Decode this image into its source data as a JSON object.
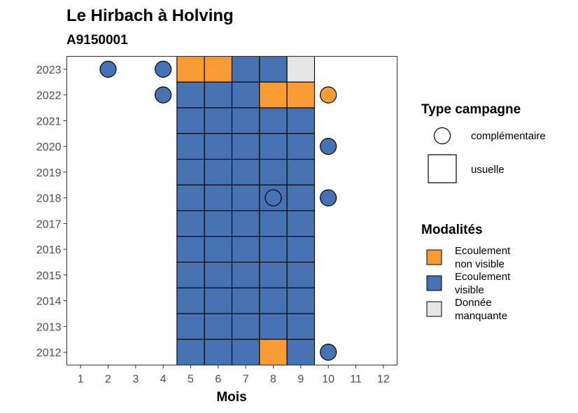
{
  "chart_data": {
    "type": "heatmap",
    "title": "Le Hirbach à Holving",
    "subtitle": "A9150001",
    "xlabel": "Mois",
    "ylabel": "",
    "x_ticks": [
      1,
      2,
      3,
      4,
      5,
      6,
      7,
      8,
      9,
      10,
      11,
      12
    ],
    "y_ticks": [
      2012,
      2013,
      2014,
      2015,
      2016,
      2017,
      2018,
      2019,
      2020,
      2021,
      2022,
      2023
    ],
    "xlim": [
      0.5,
      12.5
    ],
    "ylim": [
      2011.5,
      2023.5
    ],
    "colors": {
      "Ecoulement non visible": "#F89B34",
      "Ecoulement visible": "#4671B3",
      "Donnée manquante": "#E5E5E5",
      "none": "#FFFFFF"
    },
    "legend_type": {
      "title": "Type campagne",
      "entries": [
        {
          "shape": "circle",
          "label": "complémentaire"
        },
        {
          "shape": "square",
          "label": "usuelle"
        }
      ]
    },
    "legend_modalites": {
      "title": "Modalités",
      "entries": [
        {
          "key": "Ecoulement non visible",
          "line1": "Ecoulement",
          "line2": "non visible"
        },
        {
          "key": "Ecoulement visible",
          "line1": "Ecoulement",
          "line2": "visible"
        },
        {
          "key": "Donnée manquante",
          "line1": "Donnée",
          "line2": "manquante"
        }
      ]
    },
    "usuelle": [
      {
        "year": 2023,
        "months": [
          5,
          6,
          7,
          8,
          9
        ],
        "modalites": [
          "Ecoulement non visible",
          "Ecoulement non visible",
          "Ecoulement visible",
          "Ecoulement visible",
          "Donnée manquante"
        ]
      },
      {
        "year": 2022,
        "months": [
          5,
          6,
          7,
          8,
          9
        ],
        "modalites": [
          "Ecoulement visible",
          "Ecoulement visible",
          "Ecoulement visible",
          "Ecoulement non visible",
          "Ecoulement non visible"
        ]
      },
      {
        "year": 2021,
        "months": [
          5,
          6,
          7,
          8,
          9
        ],
        "modalites": [
          "Ecoulement visible",
          "Ecoulement visible",
          "Ecoulement visible",
          "Ecoulement visible",
          "Ecoulement visible"
        ]
      },
      {
        "year": 2020,
        "months": [
          5,
          6,
          7,
          8,
          9
        ],
        "modalites": [
          "Ecoulement visible",
          "Ecoulement visible",
          "Ecoulement visible",
          "Ecoulement visible",
          "Ecoulement visible"
        ]
      },
      {
        "year": 2019,
        "months": [
          5,
          6,
          7,
          8,
          9
        ],
        "modalites": [
          "Ecoulement visible",
          "Ecoulement visible",
          "Ecoulement visible",
          "Ecoulement visible",
          "Ecoulement visible"
        ]
      },
      {
        "year": 2018,
        "months": [
          5,
          6,
          7,
          8,
          9
        ],
        "modalites": [
          "Ecoulement visible",
          "Ecoulement visible",
          "Ecoulement visible",
          "Ecoulement visible",
          "Ecoulement visible"
        ]
      },
      {
        "year": 2017,
        "months": [
          5,
          6,
          7,
          8,
          9
        ],
        "modalites": [
          "Ecoulement visible",
          "Ecoulement visible",
          "Ecoulement visible",
          "Ecoulement visible",
          "Ecoulement visible"
        ]
      },
      {
        "year": 2016,
        "months": [
          5,
          6,
          7,
          8,
          9
        ],
        "modalites": [
          "Ecoulement visible",
          "Ecoulement visible",
          "Ecoulement visible",
          "Ecoulement visible",
          "Ecoulement visible"
        ]
      },
      {
        "year": 2015,
        "months": [
          5,
          6,
          7,
          8,
          9
        ],
        "modalites": [
          "Ecoulement visible",
          "Ecoulement visible",
          "Ecoulement visible",
          "Ecoulement visible",
          "Ecoulement visible"
        ]
      },
      {
        "year": 2014,
        "months": [
          5,
          6,
          7,
          8,
          9
        ],
        "modalites": [
          "Ecoulement visible",
          "Ecoulement visible",
          "Ecoulement visible",
          "Ecoulement visible",
          "Ecoulement visible"
        ]
      },
      {
        "year": 2013,
        "months": [
          5,
          6,
          7,
          8,
          9
        ],
        "modalites": [
          "Ecoulement visible",
          "Ecoulement visible",
          "Ecoulement visible",
          "Ecoulement visible",
          "Ecoulement visible"
        ]
      },
      {
        "year": 2012,
        "months": [
          5,
          6,
          7,
          8,
          9
        ],
        "modalites": [
          "Ecoulement visible",
          "Ecoulement visible",
          "Ecoulement visible",
          "Ecoulement non visible",
          "Ecoulement visible"
        ]
      }
    ],
    "complementaire": [
      {
        "year": 2023,
        "month": 2,
        "modalite": "Ecoulement visible"
      },
      {
        "year": 2023,
        "month": 4,
        "modalite": "Ecoulement visible"
      },
      {
        "year": 2022,
        "month": 4,
        "modalite": "Ecoulement visible"
      },
      {
        "year": 2022,
        "month": 10,
        "modalite": "Ecoulement non visible"
      },
      {
        "year": 2020,
        "month": 10,
        "modalite": "Ecoulement visible"
      },
      {
        "year": 2018,
        "month": 8,
        "modalite": "Ecoulement visible"
      },
      {
        "year": 2018,
        "month": 10,
        "modalite": "Ecoulement visible"
      },
      {
        "year": 2012,
        "month": 10,
        "modalite": "Ecoulement visible"
      }
    ]
  }
}
